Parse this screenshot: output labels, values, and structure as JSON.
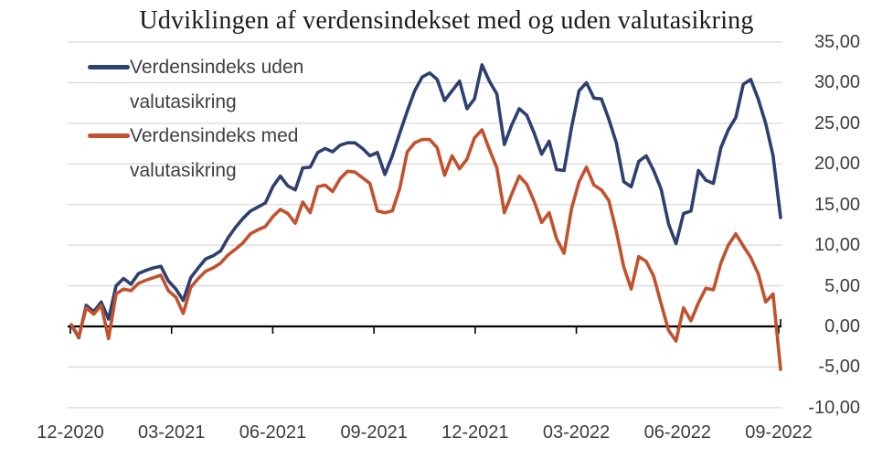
{
  "chart_data": {
    "type": "line",
    "title": "Udviklingen af verdensindekset med og uden valutasikring",
    "grid": "horizontal",
    "legend_position": "top-left-inside",
    "background_color": "#ffffff",
    "gridline_color": "#d9d9d9",
    "axis_color": "#000000",
    "label_color": "#3d3d3d",
    "ylim": [
      -10,
      35
    ],
    "y_tick_values": [
      35,
      30,
      25,
      20,
      15,
      10,
      5,
      0,
      -5,
      -10
    ],
    "y_tick_labels": [
      "35,00",
      "30,00",
      "25,00",
      "20,00",
      "15,00",
      "10,00",
      "5,00",
      "0,00",
      "-5,00",
      "-10,00"
    ],
    "x_axis": {
      "labels": [
        "12-2020",
        "03-2021",
        "06-2021",
        "09-2021",
        "12-2021",
        "03-2022",
        "06-2022",
        "09-2022"
      ],
      "note": "weekly samples traced from chart, Dec 2020 - Sep/Oct 2022"
    },
    "legend": [
      {
        "line1": "Verdensindeks uden",
        "line2": "valutasikring",
        "color": "#2d4070"
      },
      {
        "line1": "Verdensindeks med",
        "line2": "valutasikring",
        "color": "#c2512e"
      }
    ],
    "series": [
      {
        "name": "Verdensindeks uden valutasikring",
        "color": "#2d4070",
        "values": [
          0.2,
          -1.4,
          2.6,
          1.8,
          3.0,
          0.9,
          5.0,
          5.9,
          5.2,
          6.5,
          6.9,
          7.2,
          7.4,
          5.6,
          4.6,
          3.2,
          6.0,
          7.2,
          8.3,
          8.7,
          9.3,
          10.9,
          12.2,
          13.3,
          14.2,
          14.7,
          15.2,
          17.2,
          18.5,
          17.3,
          16.8,
          19.5,
          19.6,
          21.4,
          21.9,
          21.5,
          22.3,
          22.6,
          22.6,
          21.9,
          21.0,
          21.4,
          18.7,
          21.0,
          23.8,
          26.5,
          29.0,
          30.7,
          31.2,
          30.4,
          27.8,
          29.0,
          30.2,
          26.8,
          28.0,
          32.2,
          30.2,
          28.6,
          22.4,
          24.8,
          26.8,
          26.0,
          23.8,
          21.2,
          22.8,
          19.3,
          19.2,
          24.5,
          29.0,
          30.0,
          28.1,
          28.0,
          25.5,
          22.6,
          17.8,
          17.2,
          20.3,
          21.0,
          19.2,
          16.9,
          12.6,
          10.2,
          13.9,
          14.2,
          19.2,
          18.0,
          17.6,
          22.0,
          24.2,
          25.7,
          29.8,
          30.4,
          28.0,
          25.0,
          21.0,
          13.4
        ]
      },
      {
        "name": "Verdensindeks med valutasikring",
        "color": "#c2512e",
        "values": [
          0.2,
          -1.3,
          2.3,
          1.5,
          2.6,
          -1.5,
          4.0,
          4.6,
          4.4,
          5.3,
          5.7,
          6.0,
          6.3,
          4.4,
          3.6,
          1.6,
          4.8,
          5.9,
          6.8,
          7.2,
          7.8,
          8.8,
          9.5,
          10.3,
          11.4,
          11.9,
          12.3,
          13.5,
          14.4,
          13.9,
          12.7,
          15.3,
          14.0,
          17.2,
          17.4,
          16.6,
          18.2,
          19.1,
          19.0,
          18.3,
          17.6,
          14.2,
          14.0,
          14.2,
          17.0,
          21.5,
          22.6,
          23.0,
          23.0,
          22.0,
          18.6,
          21.0,
          19.4,
          20.6,
          23.2,
          24.2,
          21.8,
          19.5,
          14.0,
          16.3,
          18.5,
          17.5,
          15.4,
          12.8,
          14.0,
          10.8,
          9.0,
          14.5,
          17.8,
          19.6,
          17.4,
          16.8,
          15.5,
          11.7,
          7.3,
          4.6,
          8.6,
          8.0,
          6.2,
          2.8,
          -0.5,
          -1.8,
          2.3,
          0.7,
          2.9,
          4.7,
          4.5,
          7.8,
          10.0,
          11.4,
          9.9,
          8.5,
          6.5,
          3.0,
          4.0,
          -5.3
        ]
      }
    ]
  }
}
